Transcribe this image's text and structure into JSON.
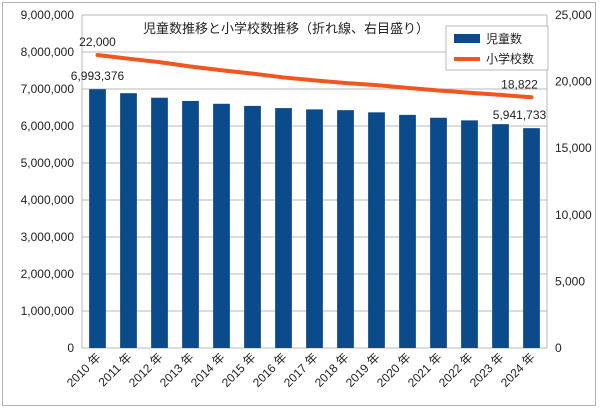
{
  "chart_data": {
    "type": "bar+line",
    "title": "児童数推移と小学校数推移（折れ線、右目盛り）",
    "categories": [
      "2010 年",
      "2011 年",
      "2012 年",
      "2013 年",
      "2014 年",
      "2015 年",
      "2016 年",
      "2017 年",
      "2018 年",
      "2019 年",
      "2020 年",
      "2021 年",
      "2022 年",
      "2023 年",
      "2024 年"
    ],
    "series": [
      {
        "name": "児童数",
        "type": "bar",
        "axis": "left",
        "color": "#0b4a8b",
        "values": [
          6993376,
          6887000,
          6764000,
          6677000,
          6600000,
          6543000,
          6484000,
          6449000,
          6428000,
          6369000,
          6301000,
          6223000,
          6152000,
          6050000,
          5941733
        ]
      },
      {
        "name": "小学校数",
        "type": "line",
        "axis": "right",
        "color": "#f0561d",
        "values": [
          22000,
          21721,
          21460,
          21131,
          20852,
          20601,
          20313,
          20095,
          19892,
          19738,
          19525,
          19336,
          19161,
          19000,
          18822
        ]
      }
    ],
    "data_labels": [
      {
        "series": 0,
        "index": 0,
        "text": "6,993,376"
      },
      {
        "series": 0,
        "index": 14,
        "text": "5,941,733"
      },
      {
        "series": 1,
        "index": 0,
        "text": "22,000"
      },
      {
        "series": 1,
        "index": 14,
        "text": "18,822"
      }
    ],
    "y_left": {
      "min": 0,
      "max": 9000000,
      "ticks": [
        0,
        1000000,
        2000000,
        3000000,
        4000000,
        5000000,
        6000000,
        7000000,
        8000000,
        9000000
      ],
      "tick_labels": [
        "0",
        "1,000,000",
        "2,000,000",
        "3,000,000",
        "4,000,000",
        "5,000,000",
        "6,000,000",
        "7,000,000",
        "8,000,000",
        "9,000,000"
      ]
    },
    "y_right": {
      "min": 0,
      "max": 25000,
      "ticks": [
        0,
        5000,
        10000,
        15000,
        20000,
        25000
      ],
      "tick_labels": [
        "0",
        "5,000",
        "10,000",
        "15,000",
        "20,000",
        "25,000"
      ]
    },
    "grid": true,
    "legend": "top-right",
    "xlabel": "",
    "ylabel": ""
  }
}
